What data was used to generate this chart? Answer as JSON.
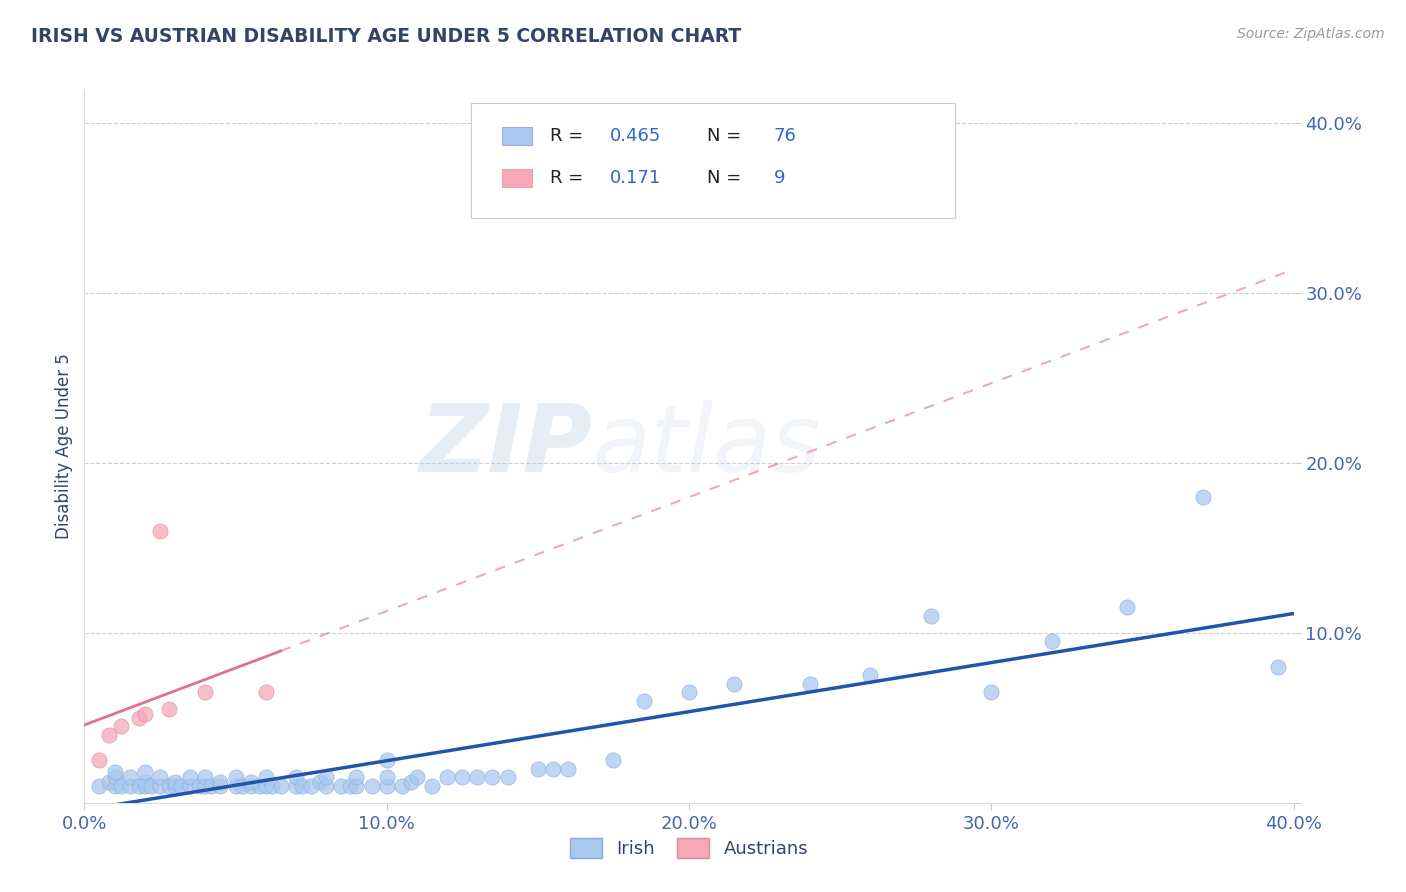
{
  "title": "IRISH VS AUSTRIAN DISABILITY AGE UNDER 5 CORRELATION CHART",
  "source": "Source: ZipAtlas.com",
  "ylabel": "Disability Age Under 5",
  "xlim": [
    0.0,
    0.4
  ],
  "ylim": [
    0.0,
    0.42
  ],
  "xtick_vals": [
    0.0,
    0.1,
    0.2,
    0.3,
    0.4
  ],
  "ytick_vals": [
    0.0,
    0.1,
    0.2,
    0.3,
    0.4
  ],
  "irish_color": "#a8c8f0",
  "irish_edge_color": "#88aad8",
  "austrian_color": "#f4a8b8",
  "austrian_edge_color": "#e088a0",
  "irish_line_color": "#2255aa",
  "austrian_line_color": "#e07090",
  "legend_irish_label": "Irish",
  "legend_austrian_label": "Austrians",
  "irish_R": 0.465,
  "irish_N": 76,
  "austrian_R": 0.171,
  "austrian_N": 9,
  "irish_x": [
    0.005,
    0.008,
    0.01,
    0.01,
    0.01,
    0.012,
    0.015,
    0.015,
    0.018,
    0.02,
    0.02,
    0.02,
    0.022,
    0.025,
    0.025,
    0.028,
    0.03,
    0.03,
    0.032,
    0.035,
    0.035,
    0.038,
    0.04,
    0.04,
    0.042,
    0.045,
    0.045,
    0.05,
    0.05,
    0.052,
    0.055,
    0.055,
    0.058,
    0.06,
    0.06,
    0.062,
    0.065,
    0.07,
    0.07,
    0.072,
    0.075,
    0.078,
    0.08,
    0.08,
    0.085,
    0.088,
    0.09,
    0.09,
    0.095,
    0.1,
    0.1,
    0.1,
    0.105,
    0.108,
    0.11,
    0.115,
    0.12,
    0.125,
    0.13,
    0.135,
    0.14,
    0.15,
    0.155,
    0.16,
    0.175,
    0.185,
    0.2,
    0.215,
    0.24,
    0.26,
    0.28,
    0.3,
    0.32,
    0.345,
    0.37,
    0.395
  ],
  "irish_y": [
    0.01,
    0.012,
    0.01,
    0.015,
    0.018,
    0.01,
    0.01,
    0.015,
    0.01,
    0.01,
    0.012,
    0.018,
    0.01,
    0.01,
    0.015,
    0.01,
    0.01,
    0.012,
    0.01,
    0.01,
    0.015,
    0.01,
    0.01,
    0.015,
    0.01,
    0.01,
    0.012,
    0.01,
    0.015,
    0.01,
    0.01,
    0.012,
    0.01,
    0.01,
    0.015,
    0.01,
    0.01,
    0.01,
    0.015,
    0.01,
    0.01,
    0.012,
    0.01,
    0.015,
    0.01,
    0.01,
    0.01,
    0.015,
    0.01,
    0.01,
    0.015,
    0.025,
    0.01,
    0.012,
    0.015,
    0.01,
    0.015,
    0.015,
    0.015,
    0.015,
    0.015,
    0.02,
    0.02,
    0.02,
    0.025,
    0.06,
    0.065,
    0.07,
    0.07,
    0.075,
    0.11,
    0.065,
    0.095,
    0.115,
    0.18,
    0.08
  ],
  "austrian_x": [
    0.005,
    0.008,
    0.012,
    0.018,
    0.02,
    0.025,
    0.028,
    0.04,
    0.06
  ],
  "austrian_y": [
    0.025,
    0.04,
    0.045,
    0.05,
    0.052,
    0.16,
    0.055,
    0.065,
    0.065
  ],
  "background_color": "#ffffff",
  "grid_color": "#ccccdd",
  "watermark_zip": "ZIP",
  "watermark_atlas": "atlas",
  "title_color": "#334466",
  "source_color": "#999999",
  "tick_color": "#4466aa"
}
